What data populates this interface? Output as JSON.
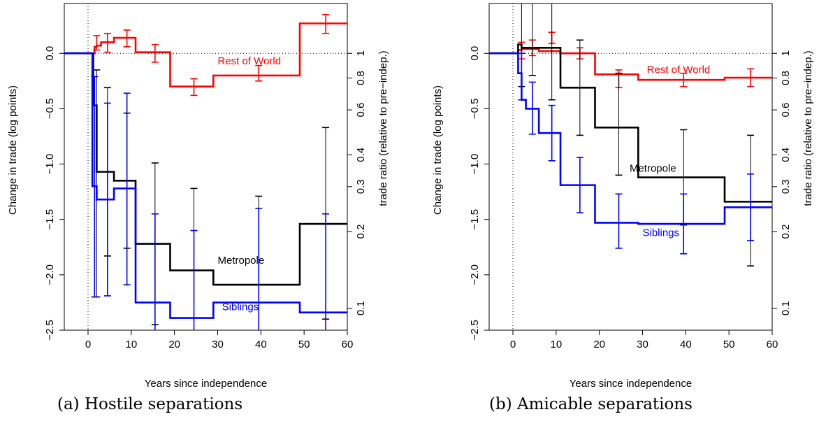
{
  "figure": {
    "panels": [
      {
        "caption": "(a) Hostile separations"
      },
      {
        "caption": "(b) Amicable separations"
      }
    ]
  },
  "chart_data": [
    {
      "type": "line",
      "title": "",
      "xlabel": "Years since independence",
      "ylabel": "Change in trade (log points)",
      "ylabel_right": "trade ratio (relative to pre−indep.)",
      "xlim": [
        -5.5,
        60
      ],
      "ylim": [
        -2.5,
        0.45
      ],
      "xticks": [
        0,
        10,
        20,
        30,
        40,
        50,
        60
      ],
      "yticks": [
        0.0,
        -0.5,
        -1.0,
        -1.5,
        -2.0,
        -2.5
      ],
      "ytick_labels": [
        "0.0",
        "−0.5",
        "−1.0",
        "−1.5",
        "−2.0",
        "−2.5"
      ],
      "yticks_right": [
        1,
        0.8,
        0.6,
        0.4,
        0.3,
        0.2,
        0.1
      ],
      "ytick_right_labels": [
        "1",
        "0.8",
        "0.6",
        "0.4",
        "0.3",
        "0.2",
        "0.1"
      ],
      "reference_lines": {
        "x": 0,
        "y": 0
      },
      "series": [
        {
          "name": "Rest of World",
          "color": "#ff0000",
          "label_x": 30,
          "label_y": -0.1,
          "steps": [
            [
              -5.5,
              0
            ],
            [
              0.5,
              0
            ],
            [
              1.5,
              0.06
            ],
            [
              2,
              0.07
            ],
            [
              3,
              0.1
            ],
            [
              6,
              0.14
            ],
            [
              11,
              0.01
            ],
            [
              19,
              -0.3
            ],
            [
              29,
              -0.2
            ],
            [
              49,
              0.27
            ],
            [
              60,
              0.27
            ]
          ],
          "errorbars": [
            [
              2,
              0.03,
              0.16
            ],
            [
              4.5,
              0.01,
              0.18
            ],
            [
              9,
              0.06,
              0.21
            ],
            [
              15.5,
              -0.08,
              0.08
            ],
            [
              24.5,
              -0.38,
              -0.23
            ],
            [
              39.5,
              -0.25,
              -0.11
            ],
            [
              55,
              0.18,
              0.35
            ]
          ]
        },
        {
          "name": "Metropole",
          "color": "#000000",
          "label_x": 30,
          "label_y": -1.9,
          "steps": [
            [
              -5.5,
              0
            ],
            [
              0.5,
              0
            ],
            [
              1.2,
              -0.47
            ],
            [
              2,
              -1.07
            ],
            [
              6,
              -1.15
            ],
            [
              11,
              -1.72
            ],
            [
              19,
              -1.96
            ],
            [
              29,
              -2.09
            ],
            [
              49,
              -1.54
            ],
            [
              60,
              -1.54
            ]
          ],
          "errorbars": [
            [
              2,
              -2.2,
              -0.15
            ],
            [
              4.5,
              -1.83,
              -0.31
            ],
            [
              9,
              -1.76,
              -0.54
            ],
            [
              15.5,
              -2.45,
              -0.99
            ],
            [
              24.5,
              -2.5,
              -1.22
            ],
            [
              39.5,
              -2.5,
              -1.29
            ],
            [
              55,
              -2.4,
              -0.67
            ]
          ]
        },
        {
          "name": "Siblings",
          "color": "#0000ff",
          "label_x": 31,
          "label_y": -2.32,
          "steps": [
            [
              -5.5,
              0
            ],
            [
              0.5,
              0
            ],
            [
              1,
              -1.2
            ],
            [
              2,
              -1.32
            ],
            [
              6,
              -1.22
            ],
            [
              11,
              -2.25
            ],
            [
              19,
              -2.39
            ],
            [
              29,
              -2.25
            ],
            [
              49,
              -2.34
            ],
            [
              60,
              -2.34
            ]
          ],
          "errorbars": [
            [
              1.5,
              -2.2,
              -0.21
            ],
            [
              4.5,
              -2.19,
              -0.45
            ],
            [
              9,
              -2.09,
              -0.36
            ],
            [
              15.5,
              -2.5,
              -1.45
            ],
            [
              24.5,
              -2.5,
              -1.6
            ],
            [
              39.5,
              -2.5,
              -1.4
            ],
            [
              55,
              -2.5,
              -1.45
            ]
          ]
        }
      ]
    },
    {
      "type": "line",
      "title": "",
      "xlabel": "Years since independence",
      "ylabel": "Change in trade (log points)",
      "ylabel_right": "trade ratio (relative to pre−indep.)",
      "xlim": [
        -5.5,
        60
      ],
      "ylim": [
        -2.5,
        0.45
      ],
      "xticks": [
        0,
        10,
        20,
        30,
        40,
        50,
        60
      ],
      "yticks": [
        0.0,
        -0.5,
        -1.0,
        -1.5,
        -2.0,
        -2.5
      ],
      "ytick_labels": [
        "0.0",
        "−0.5",
        "−1.0",
        "−1.5",
        "−2.0",
        "−2.5"
      ],
      "yticks_right": [
        1,
        0.8,
        0.6,
        0.4,
        0.3,
        0.2,
        0.1
      ],
      "ytick_right_labels": [
        "1",
        "0.8",
        "0.6",
        "0.4",
        "0.3",
        "0.2",
        "0.1"
      ],
      "reference_lines": {
        "x": 0,
        "y": 0
      },
      "series": [
        {
          "name": "Rest of World",
          "color": "#ff0000",
          "label_x": 31,
          "label_y": -0.18,
          "steps": [
            [
              -5.5,
              0
            ],
            [
              0.5,
              0
            ],
            [
              1.2,
              0.03
            ],
            [
              2,
              0.04
            ],
            [
              6,
              0.02
            ],
            [
              11,
              0
            ],
            [
              19,
              -0.19
            ],
            [
              29,
              -0.24
            ],
            [
              49,
              -0.22
            ],
            [
              60,
              -0.22
            ]
          ],
          "errorbars": [
            [
              2,
              -0.05,
              0.1
            ],
            [
              4.5,
              -0.02,
              0.12
            ],
            [
              9,
              0.09,
              0.19
            ],
            [
              15.5,
              -0.05,
              0.05
            ],
            [
              24.5,
              -0.31,
              -0.15
            ],
            [
              39.5,
              -0.3,
              -0.18
            ],
            [
              55,
              -0.3,
              -0.14
            ]
          ]
        },
        {
          "name": "Metropole",
          "color": "#000000",
          "label_x": 27,
          "label_y": -1.07,
          "steps": [
            [
              -5.5,
              0
            ],
            [
              0.5,
              0
            ],
            [
              1.2,
              0.08
            ],
            [
              2,
              0.05
            ],
            [
              6,
              0.05
            ],
            [
              11,
              -0.31
            ],
            [
              19,
              -0.67
            ],
            [
              29,
              -1.12
            ],
            [
              49,
              -1.34
            ],
            [
              60,
              -1.34
            ]
          ],
          "errorbars": [
            [
              2,
              -0.3,
              0.45
            ],
            [
              4.5,
              -0.2,
              0.45
            ],
            [
              9,
              -0.42,
              0.45
            ],
            [
              15.5,
              -0.74,
              0.12
            ],
            [
              24.5,
              -1.1,
              -0.18
            ],
            [
              39.5,
              -1.55,
              -0.69
            ],
            [
              55,
              -1.92,
              -0.74
            ]
          ]
        },
        {
          "name": "Siblings",
          "color": "#0000ff",
          "label_x": 30,
          "label_y": -1.65,
          "steps": [
            [
              -5.5,
              0
            ],
            [
              0.5,
              0
            ],
            [
              1.2,
              -0.18
            ],
            [
              2,
              -0.42
            ],
            [
              3,
              -0.5
            ],
            [
              6,
              -0.72
            ],
            [
              11,
              -1.19
            ],
            [
              19,
              -1.53
            ],
            [
              29,
              -1.54
            ],
            [
              49,
              -1.39
            ],
            [
              60,
              -1.39
            ]
          ],
          "errorbars": [
            [
              2,
              -0.42,
              0.0
            ],
            [
              4.5,
              -0.73,
              -0.26
            ],
            [
              9,
              -0.97,
              -0.47
            ],
            [
              15.5,
              -1.44,
              -0.94
            ],
            [
              24.5,
              -1.76,
              -1.27
            ],
            [
              39.5,
              -1.81,
              -1.27
            ],
            [
              55,
              -1.69,
              -1.09
            ]
          ]
        }
      ]
    }
  ]
}
